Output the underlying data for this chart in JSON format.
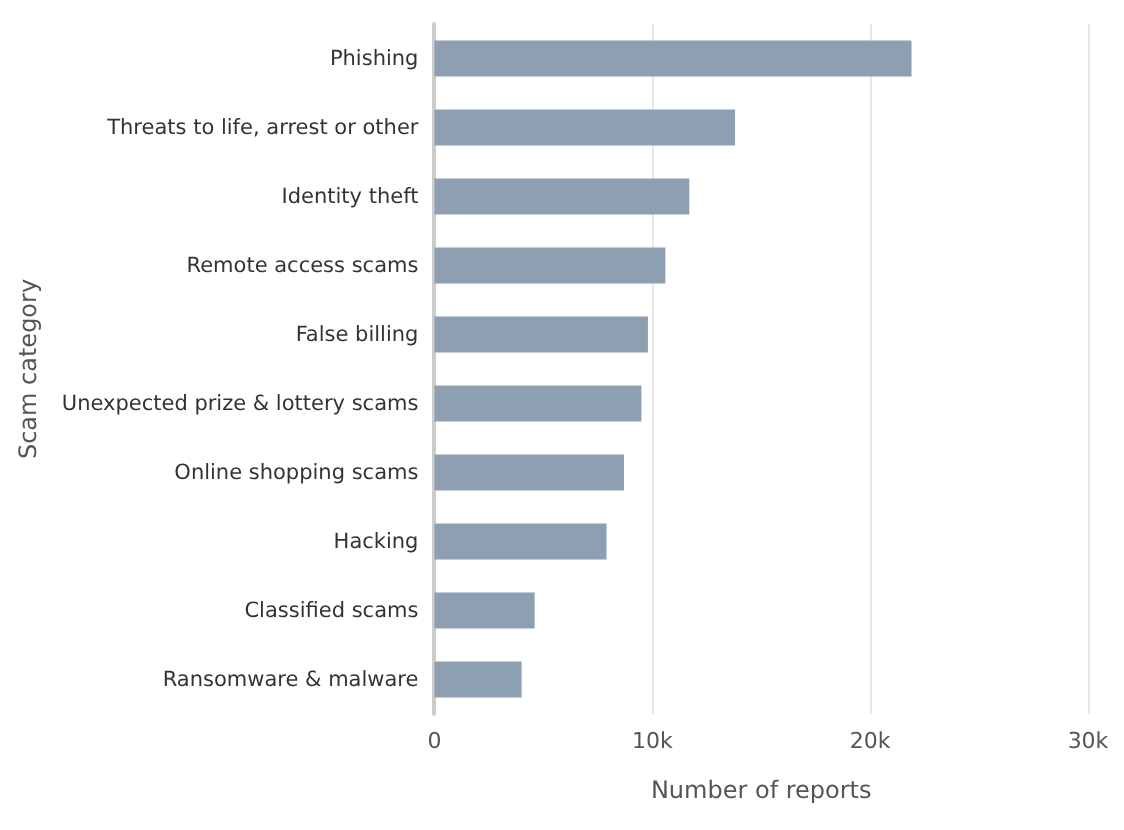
{
  "chart_data": {
    "type": "bar",
    "orientation": "horizontal",
    "xlabel": "Number of reports",
    "ylabel": "Scam category",
    "categories": [
      "Phishing",
      "Threats to life, arrest or other",
      "Identity theft",
      "Remote access scams",
      "False billing",
      "Unexpected prize & lottery scams",
      "Online shopping scams",
      "Hacking",
      "Classified scams",
      "Ransomware & malware"
    ],
    "values": [
      21900,
      13800,
      11700,
      10600,
      9800,
      9500,
      8700,
      7900,
      4600,
      4000
    ],
    "color": "#8d9fb1",
    "xlim": [
      0,
      30000
    ],
    "xticks": [
      {
        "value": 0,
        "label": "0"
      },
      {
        "value": 10000,
        "label": "10k"
      },
      {
        "value": 20000,
        "label": "20k"
      },
      {
        "value": 30000,
        "label": "30k"
      }
    ],
    "grid": "x"
  }
}
